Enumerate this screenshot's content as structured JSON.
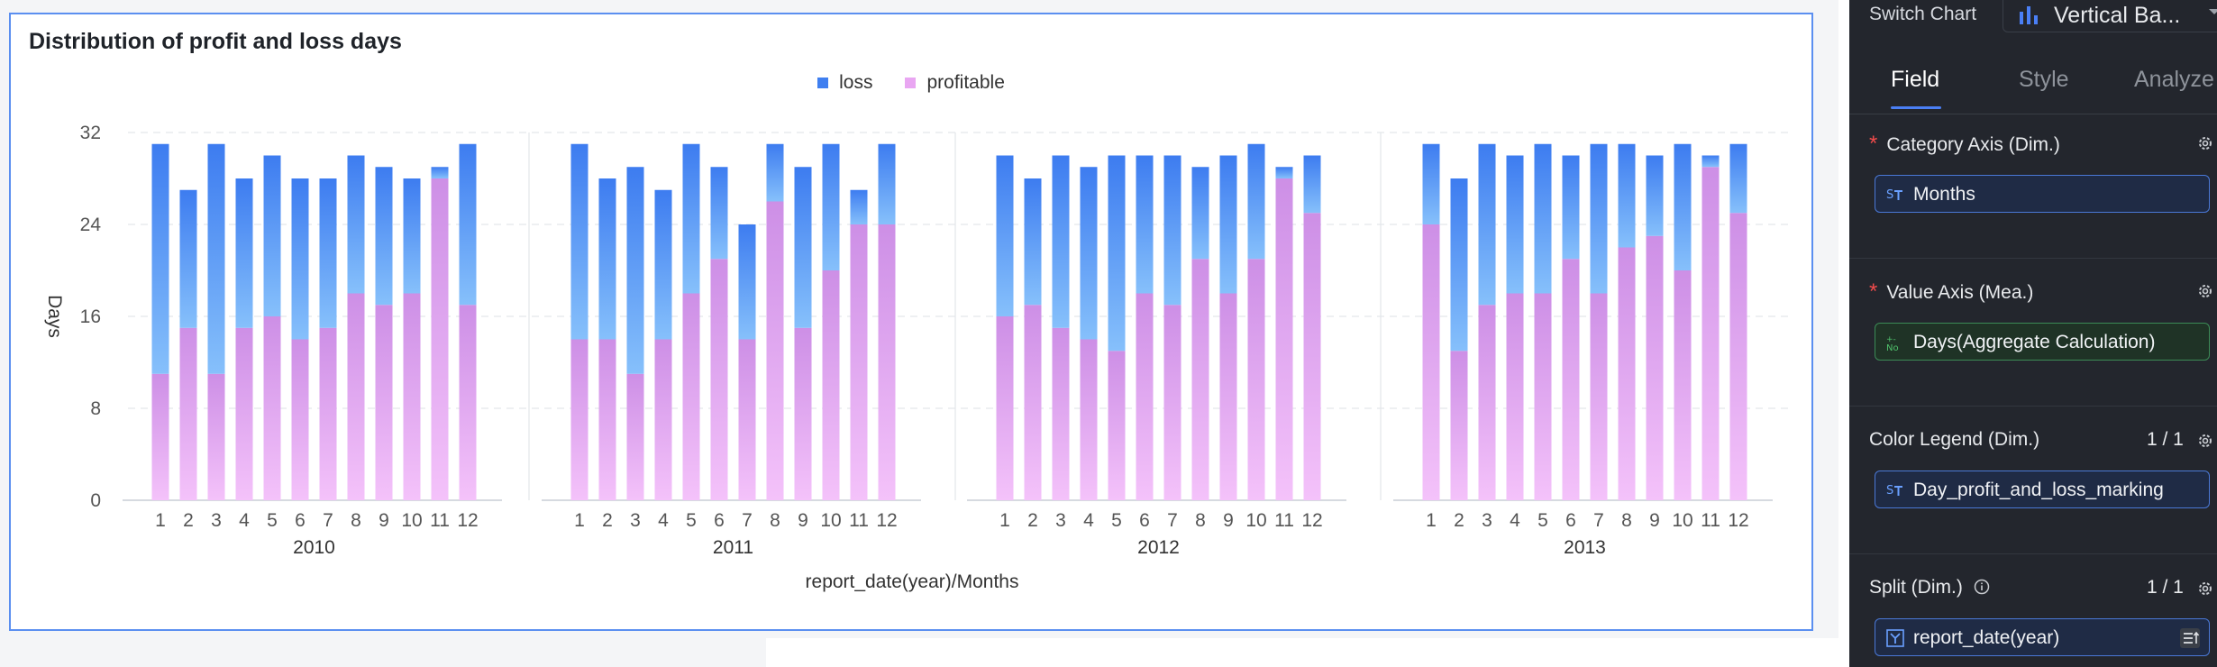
{
  "chart_card": {
    "title": "Distribution of profit and loss days",
    "legend": [
      {
        "label": "loss",
        "color": "#3f7ff0"
      },
      {
        "label": "profitable",
        "color": "#e9a6f2"
      }
    ]
  },
  "chart_data": {
    "type": "bar",
    "stacked": true,
    "title": "Distribution of profit and loss days",
    "ylabel": "Days",
    "xlabel": "report_date(year)/Months",
    "ylim": [
      0,
      32
    ],
    "yticks": [
      0,
      8,
      16,
      24,
      32
    ],
    "grid": true,
    "legend_position": "top-center",
    "categories": [
      "1",
      "2",
      "3",
      "4",
      "5",
      "6",
      "7",
      "8",
      "9",
      "10",
      "11",
      "12"
    ],
    "panels": [
      {
        "group": "2010",
        "series": [
          {
            "name": "profitable",
            "values": [
              11,
              15,
              11,
              15,
              16,
              14,
              15,
              18,
              17,
              18,
              28,
              17
            ]
          },
          {
            "name": "loss",
            "values": [
              20,
              12,
              20,
              13,
              14,
              14,
              13,
              12,
              12,
              10,
              1,
              14
            ]
          }
        ]
      },
      {
        "group": "2011",
        "series": [
          {
            "name": "profitable",
            "values": [
              14,
              14,
              11,
              14,
              18,
              21,
              14,
              26,
              15,
              20,
              24,
              24
            ]
          },
          {
            "name": "loss",
            "values": [
              17,
              14,
              18,
              13,
              13,
              8,
              10,
              5,
              14,
              11,
              3,
              7
            ]
          }
        ]
      },
      {
        "group": "2012",
        "series": [
          {
            "name": "profitable",
            "values": [
              16,
              17,
              15,
              14,
              13,
              18,
              17,
              21,
              18,
              21,
              28,
              25
            ]
          },
          {
            "name": "loss",
            "values": [
              14,
              11,
              15,
              15,
              17,
              12,
              13,
              8,
              12,
              10,
              1,
              5
            ]
          }
        ]
      },
      {
        "group": "2013",
        "series": [
          {
            "name": "profitable",
            "values": [
              24,
              13,
              17,
              18,
              18,
              21,
              18,
              22,
              23,
              20,
              29,
              25
            ]
          },
          {
            "name": "loss",
            "values": [
              7,
              15,
              14,
              12,
              13,
              9,
              13,
              9,
              7,
              11,
              1,
              6
            ]
          }
        ]
      }
    ]
  },
  "side_panel": {
    "switch_chart_label": "Switch Chart",
    "chart_type_value": "Vertical Ba...",
    "tabs": [
      "Field",
      "Style",
      "Analyze"
    ],
    "sections": [
      {
        "title": "Category Axis (Dim.)",
        "required": "*",
        "field": "Months",
        "count": ""
      },
      {
        "title": "Value Axis (Mea.)",
        "required": "*",
        "field": "Days(Aggregate Calculation)",
        "count": ""
      },
      {
        "title": "Color Legend (Dim.)",
        "required": "",
        "field": "Day_profit_and_loss_marking",
        "count": "1 / 1"
      },
      {
        "title": "Split (Dim.)",
        "required": "",
        "field": "report_date(year)",
        "count": "1 / 1"
      }
    ]
  }
}
